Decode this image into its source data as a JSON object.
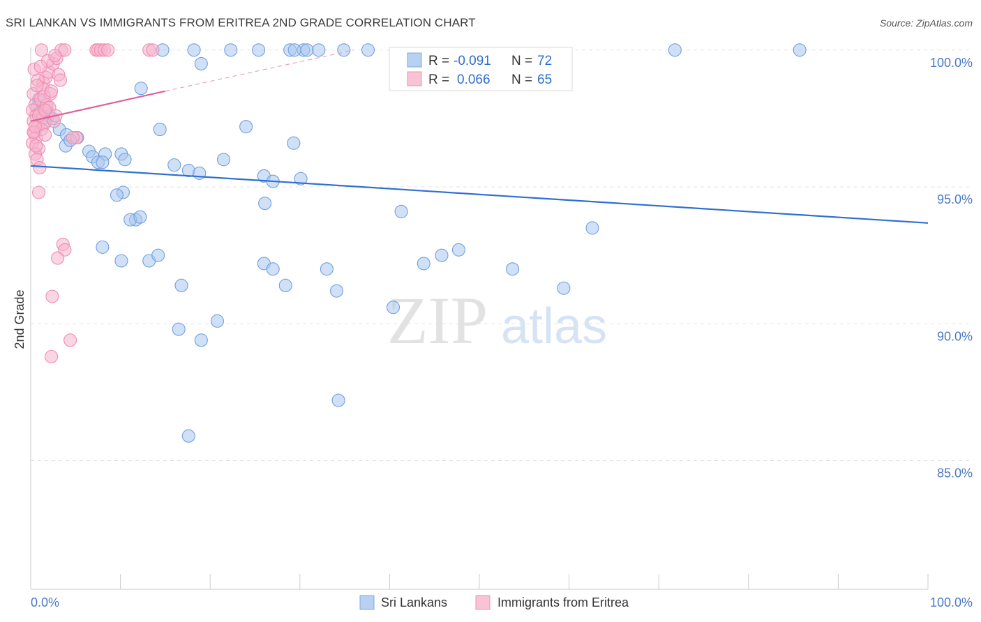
{
  "title": "SRI LANKAN VS IMMIGRANTS FROM ERITREA 2ND GRADE CORRELATION CHART",
  "source": "Source: ZipAtlas.com",
  "watermark": {
    "zip": "ZIP",
    "atlas": "atlas"
  },
  "chart_data": {
    "type": "scatter",
    "ylabel": "2nd Grade",
    "xlim": [
      0,
      100
    ],
    "ylim": [
      80.3,
      100.3
    ],
    "x_tick_labels": {
      "left": "0.0%",
      "right": "100.0%"
    },
    "y_ticks": [
      {
        "value": 100,
        "label": "100.0%"
      },
      {
        "value": 95,
        "label": "95.0%"
      },
      {
        "value": 90,
        "label": "90.0%"
      },
      {
        "value": 85,
        "label": "85.0%"
      }
    ],
    "legend": {
      "rows": [
        {
          "r_label": "R =",
          "r_value": "-0.091",
          "n_label": "N =",
          "n_value": "72"
        },
        {
          "r_label": "R =",
          "r_value": "0.066",
          "n_label": "N =",
          "n_value": "65"
        }
      ]
    },
    "series": [
      {
        "name": "Sri Lankans",
        "color": "#6fa0e0",
        "fill": "#a9c7ee",
        "trend": {
          "x": [
            0,
            100
          ],
          "y": [
            95.77,
            93.68
          ],
          "color": "#2f6fd0"
        },
        "points": [
          [
            0.9,
            98.2
          ],
          [
            0.7,
            97.9
          ],
          [
            1.4,
            97.8
          ],
          [
            1.7,
            97.4
          ],
          [
            2.0,
            97.6
          ],
          [
            2.4,
            97.5
          ],
          [
            3.2,
            97.1
          ],
          [
            4.0,
            96.9
          ],
          [
            5.2,
            96.8
          ],
          [
            3.9,
            96.5
          ],
          [
            4.4,
            96.7
          ],
          [
            6.5,
            96.3
          ],
          [
            8.3,
            96.2
          ],
          [
            6.9,
            96.1
          ],
          [
            7.5,
            95.9
          ],
          [
            8.0,
            95.9
          ],
          [
            10.1,
            96.2
          ],
          [
            10.5,
            96.0
          ],
          [
            14.4,
            97.1
          ],
          [
            12.3,
            98.6
          ],
          [
            16.0,
            95.8
          ],
          [
            17.6,
            95.6
          ],
          [
            18.8,
            95.5
          ],
          [
            21.5,
            96.0
          ],
          [
            19.0,
            99.5
          ],
          [
            14.7,
            100.0
          ],
          [
            18.2,
            100.0
          ],
          [
            22.3,
            100.0
          ],
          [
            25.4,
            100.0
          ],
          [
            28.9,
            100.0
          ],
          [
            30.4,
            100.0
          ],
          [
            29.4,
            100.0
          ],
          [
            30.8,
            100.0
          ],
          [
            32.1,
            100.0
          ],
          [
            34.9,
            100.0
          ],
          [
            37.6,
            100.0
          ],
          [
            71.8,
            100.0
          ],
          [
            85.7,
            100.0
          ],
          [
            24.0,
            97.2
          ],
          [
            26.0,
            95.4
          ],
          [
            29.3,
            96.6
          ],
          [
            27.0,
            95.2
          ],
          [
            30.1,
            95.3
          ],
          [
            26.1,
            94.4
          ],
          [
            10.3,
            94.8
          ],
          [
            9.6,
            94.7
          ],
          [
            11.7,
            93.8
          ],
          [
            11.1,
            93.8
          ],
          [
            12.2,
            93.9
          ],
          [
            8.0,
            92.8
          ],
          [
            10.1,
            92.3
          ],
          [
            13.2,
            92.3
          ],
          [
            14.2,
            92.5
          ],
          [
            41.3,
            94.1
          ],
          [
            26.0,
            92.2
          ],
          [
            27.0,
            92.0
          ],
          [
            33.0,
            92.0
          ],
          [
            43.8,
            92.2
          ],
          [
            45.8,
            92.5
          ],
          [
            47.7,
            92.7
          ],
          [
            62.6,
            93.5
          ],
          [
            16.8,
            91.4
          ],
          [
            28.4,
            91.4
          ],
          [
            40.4,
            90.6
          ],
          [
            59.4,
            91.3
          ],
          [
            53.7,
            92.0
          ],
          [
            20.8,
            90.1
          ],
          [
            16.5,
            89.8
          ],
          [
            19.0,
            89.4
          ],
          [
            34.1,
            91.2
          ],
          [
            34.3,
            87.2
          ],
          [
            17.6,
            85.9
          ]
        ]
      },
      {
        "name": "Immigrants from Eritrea",
        "color": "#f08cb0",
        "fill": "#f6b5cc",
        "trend": {
          "x": [
            0,
            15
          ],
          "y": [
            97.4,
            98.5
          ],
          "color": "#e0609a"
        },
        "trend_ext": {
          "x": [
            15,
            36
          ],
          "y": [
            98.5,
            100.0
          ],
          "color": "#eaa0bf"
        },
        "points": [
          [
            0.3,
            98.4
          ],
          [
            0.5,
            98.0
          ],
          [
            0.2,
            97.8
          ],
          [
            0.6,
            97.6
          ],
          [
            0.3,
            97.4
          ],
          [
            0.8,
            97.2
          ],
          [
            0.4,
            97.0
          ],
          [
            0.6,
            96.8
          ],
          [
            0.2,
            96.6
          ],
          [
            0.9,
            96.4
          ],
          [
            0.5,
            96.2
          ],
          [
            0.7,
            96.0
          ],
          [
            1.0,
            97.7
          ],
          [
            1.3,
            97.5
          ],
          [
            1.5,
            97.3
          ],
          [
            1.2,
            97.1
          ],
          [
            1.6,
            96.9
          ],
          [
            1.8,
            97.9
          ],
          [
            1.1,
            98.2
          ],
          [
            1.4,
            98.8
          ],
          [
            1.7,
            99.0
          ],
          [
            2.0,
            99.2
          ],
          [
            2.5,
            99.5
          ],
          [
            2.9,
            99.7
          ],
          [
            3.1,
            99.1
          ],
          [
            1.9,
            99.6
          ],
          [
            1.3,
            98.6
          ],
          [
            0.8,
            98.9
          ],
          [
            1.2,
            100.0
          ],
          [
            3.4,
            100.0
          ],
          [
            3.8,
            100.0
          ],
          [
            7.3,
            100.0
          ],
          [
            7.5,
            100.0
          ],
          [
            7.8,
            100.0
          ],
          [
            8.2,
            100.0
          ],
          [
            8.6,
            100.0
          ],
          [
            13.2,
            100.0
          ],
          [
            13.6,
            100.0
          ],
          [
            2.2,
            98.4
          ],
          [
            1.8,
            98.0
          ],
          [
            0.9,
            97.6
          ],
          [
            2.6,
            97.4
          ],
          [
            1.0,
            95.7
          ],
          [
            0.9,
            94.8
          ],
          [
            3.6,
            92.9
          ],
          [
            3.8,
            92.7
          ],
          [
            3.0,
            92.4
          ],
          [
            2.4,
            91.0
          ],
          [
            4.4,
            89.4
          ],
          [
            2.3,
            88.8
          ],
          [
            0.4,
            99.3
          ],
          [
            2.7,
            99.8
          ],
          [
            0.6,
            96.5
          ],
          [
            5.1,
            96.8
          ],
          [
            1.5,
            98.3
          ],
          [
            0.3,
            97.0
          ],
          [
            2.1,
            97.9
          ],
          [
            0.7,
            98.7
          ],
          [
            1.1,
            99.4
          ],
          [
            2.3,
            98.5
          ],
          [
            0.5,
            97.2
          ],
          [
            1.6,
            97.8
          ],
          [
            2.8,
            97.6
          ],
          [
            4.7,
            96.8
          ],
          [
            3.3,
            98.9
          ]
        ]
      }
    ],
    "bottom_legend": [
      "Sri Lankans",
      "Immigrants from Eritrea"
    ]
  }
}
